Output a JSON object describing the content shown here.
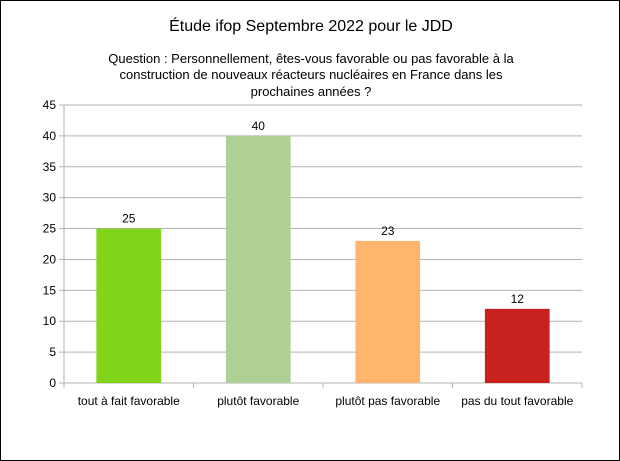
{
  "chart_data": {
    "type": "bar",
    "title": "Étude ifop Septembre 2022 pour le JDD",
    "subtitle_lines": [
      "Question : Personnellement, êtes-vous favorable ou pas favorable à la",
      "construction de nouveaux réacteurs nucléaires en France dans les",
      "prochaines années ?"
    ],
    "categories": [
      "tout à fait favorable",
      "plutôt favorable",
      "plutôt pas favorable",
      "pas du tout favorable"
    ],
    "values": [
      25,
      40,
      23,
      12
    ],
    "colors": [
      "#81d41a",
      "#afd095",
      "#ffb66c",
      "#c9211e"
    ],
    "ylim": [
      0,
      45
    ],
    "yticks": [
      0,
      5,
      10,
      15,
      20,
      25,
      30,
      35,
      40,
      45
    ],
    "grid": true,
    "legend": "none"
  }
}
